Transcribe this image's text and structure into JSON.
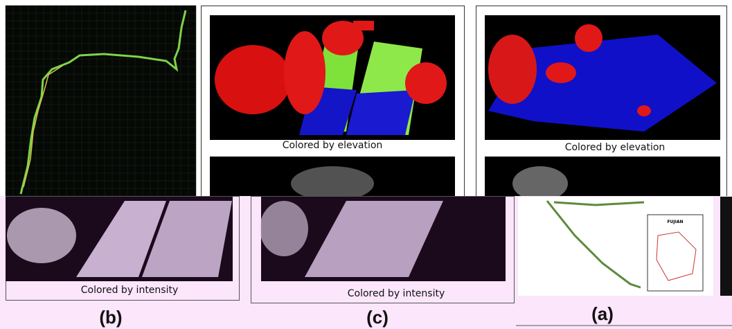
{
  "captions": [
    "Colored by elevation",
    "Colored by elevation",
    "Colored by intensity",
    "Colored by intensity"
  ],
  "panel_labels": [
    "(b)",
    "(c)",
    "(a)"
  ],
  "map_title": "FUJIAN"
}
